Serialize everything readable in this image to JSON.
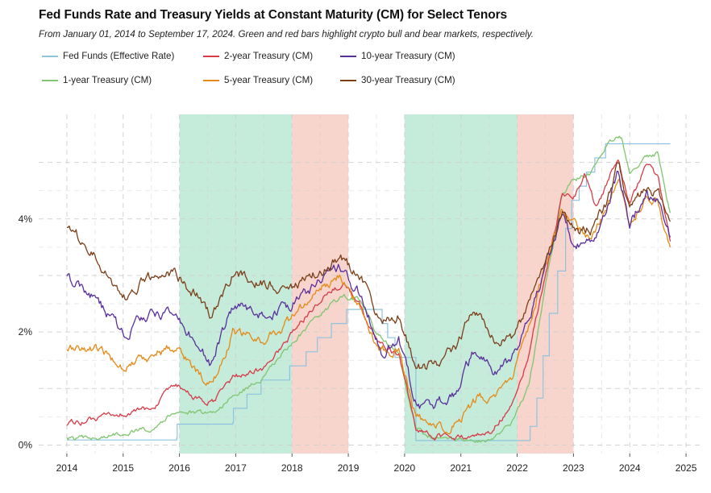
{
  "chart_data": {
    "type": "line",
    "title": "Fed Funds Rate and Treasury Yields at Constant Maturity (CM) for Select Tenors",
    "subtitle": "From January 01, 2014 to September 17, 2024. Green and red bars highlight crypto bull and bear markets, respectively.",
    "xlabel": "",
    "ylabel": "",
    "xlim": [
      2013.5,
      2025.3
    ],
    "ylim": [
      -0.15,
      5.85
    ],
    "x_ticks": [
      2014,
      2015,
      2016,
      2017,
      2018,
      2019,
      2020,
      2021,
      2022,
      2023,
      2024,
      2025
    ],
    "x_tick_labels": [
      "2014",
      "2015",
      "2016",
      "2017",
      "2018",
      "2019",
      "2020",
      "2021",
      "2022",
      "2023",
      "2024",
      "2025"
    ],
    "y_ticks": [
      0,
      2,
      4
    ],
    "y_tick_labels": [
      "0%",
      "2%",
      "4%"
    ],
    "grid": true,
    "legend_position": "top",
    "bands": [
      {
        "name": "bull",
        "start": 2016.0,
        "end": 2018.0,
        "color": "#bfe9d7"
      },
      {
        "name": "bear",
        "start": 2018.0,
        "end": 2019.0,
        "color": "#f6cfc6"
      },
      {
        "name": "bull",
        "start": 2020.0,
        "end": 2022.0,
        "color": "#bfe9d7"
      },
      {
        "name": "bear",
        "start": 2022.0,
        "end": 2023.0,
        "color": "#f6cfc6"
      }
    ],
    "series": [
      {
        "name": "Fed Funds (Effective Rate)",
        "color": "#8ec3df",
        "step": true,
        "noise": 0,
        "points": [
          [
            2014.0,
            0.09
          ],
          [
            2015.95,
            0.12
          ],
          [
            2015.96,
            0.37
          ],
          [
            2016.95,
            0.4
          ],
          [
            2016.96,
            0.65
          ],
          [
            2017.2,
            0.9
          ],
          [
            2017.45,
            1.15
          ],
          [
            2017.96,
            1.4
          ],
          [
            2018.25,
            1.65
          ],
          [
            2018.45,
            1.9
          ],
          [
            2018.7,
            2.15
          ],
          [
            2018.97,
            2.4
          ],
          [
            2019.55,
            2.4
          ],
          [
            2019.6,
            2.15
          ],
          [
            2019.7,
            1.9
          ],
          [
            2019.83,
            1.55
          ],
          [
            2020.17,
            1.55
          ],
          [
            2020.2,
            0.08
          ],
          [
            2022.2,
            0.08
          ],
          [
            2022.23,
            0.33
          ],
          [
            2022.35,
            0.83
          ],
          [
            2022.46,
            1.58
          ],
          [
            2022.57,
            2.33
          ],
          [
            2022.72,
            3.08
          ],
          [
            2022.86,
            3.83
          ],
          [
            2022.97,
            4.33
          ],
          [
            2023.1,
            4.58
          ],
          [
            2023.23,
            4.83
          ],
          [
            2023.38,
            5.08
          ],
          [
            2023.57,
            5.33
          ],
          [
            2024.72,
            5.33
          ]
        ]
      },
      {
        "name": "1-year Treasury (CM)",
        "color": "#7fc66f",
        "step": false,
        "noise": 0.04,
        "points": [
          [
            2014.0,
            0.12
          ],
          [
            2014.5,
            0.1
          ],
          [
            2015.0,
            0.22
          ],
          [
            2015.5,
            0.3
          ],
          [
            2015.95,
            0.62
          ],
          [
            2016.3,
            0.55
          ],
          [
            2016.6,
            0.58
          ],
          [
            2016.95,
            0.85
          ],
          [
            2017.5,
            1.2
          ],
          [
            2017.95,
            1.75
          ],
          [
            2018.5,
            2.3
          ],
          [
            2018.9,
            2.65
          ],
          [
            2019.2,
            2.55
          ],
          [
            2019.5,
            2.0
          ],
          [
            2019.9,
            1.58
          ],
          [
            2020.2,
            0.3
          ],
          [
            2020.4,
            0.15
          ],
          [
            2021.0,
            0.1
          ],
          [
            2021.5,
            0.07
          ],
          [
            2021.9,
            0.38
          ],
          [
            2022.2,
            1.0
          ],
          [
            2022.5,
            2.8
          ],
          [
            2022.8,
            4.4
          ],
          [
            2023.0,
            4.7
          ],
          [
            2023.3,
            4.8
          ],
          [
            2023.6,
            5.35
          ],
          [
            2023.85,
            5.45
          ],
          [
            2024.0,
            4.85
          ],
          [
            2024.3,
            5.1
          ],
          [
            2024.5,
            5.15
          ],
          [
            2024.72,
            4.1
          ]
        ]
      },
      {
        "name": "2-year Treasury (CM)",
        "color": "#d63b47",
        "step": false,
        "noise": 0.05,
        "points": [
          [
            2014.0,
            0.38
          ],
          [
            2014.5,
            0.45
          ],
          [
            2015.0,
            0.55
          ],
          [
            2015.5,
            0.65
          ],
          [
            2015.95,
            1.05
          ],
          [
            2016.3,
            0.8
          ],
          [
            2016.6,
            0.75
          ],
          [
            2016.95,
            1.2
          ],
          [
            2017.5,
            1.35
          ],
          [
            2017.95,
            1.9
          ],
          [
            2018.5,
            2.6
          ],
          [
            2018.9,
            2.85
          ],
          [
            2019.2,
            2.5
          ],
          [
            2019.5,
            1.85
          ],
          [
            2019.9,
            1.6
          ],
          [
            2020.2,
            0.25
          ],
          [
            2020.5,
            0.15
          ],
          [
            2021.0,
            0.13
          ],
          [
            2021.5,
            0.22
          ],
          [
            2021.9,
            0.7
          ],
          [
            2022.2,
            1.6
          ],
          [
            2022.5,
            3.0
          ],
          [
            2022.8,
            4.4
          ],
          [
            2023.0,
            4.4
          ],
          [
            2023.2,
            4.8
          ],
          [
            2023.4,
            4.2
          ],
          [
            2023.8,
            5.1
          ],
          [
            2024.0,
            4.25
          ],
          [
            2024.3,
            4.95
          ],
          [
            2024.5,
            4.75
          ],
          [
            2024.72,
            3.55
          ]
        ]
      },
      {
        "name": "5-year Treasury (CM)",
        "color": "#e58a16",
        "step": false,
        "noise": 0.08,
        "points": [
          [
            2014.0,
            1.7
          ],
          [
            2014.5,
            1.7
          ],
          [
            2015.0,
            1.4
          ],
          [
            2015.5,
            1.6
          ],
          [
            2015.95,
            1.75
          ],
          [
            2016.3,
            1.3
          ],
          [
            2016.6,
            1.05
          ],
          [
            2016.95,
            2.0
          ],
          [
            2017.5,
            1.85
          ],
          [
            2017.95,
            2.2
          ],
          [
            2018.5,
            2.75
          ],
          [
            2018.85,
            3.05
          ],
          [
            2019.2,
            2.45
          ],
          [
            2019.5,
            1.7
          ],
          [
            2019.9,
            1.65
          ],
          [
            2020.2,
            0.5
          ],
          [
            2020.5,
            0.28
          ],
          [
            2021.0,
            0.4
          ],
          [
            2021.3,
            0.85
          ],
          [
            2021.6,
            0.8
          ],
          [
            2021.95,
            1.3
          ],
          [
            2022.2,
            2.0
          ],
          [
            2022.5,
            3.2
          ],
          [
            2022.8,
            4.2
          ],
          [
            2023.0,
            3.9
          ],
          [
            2023.3,
            3.7
          ],
          [
            2023.6,
            4.2
          ],
          [
            2023.8,
            4.8
          ],
          [
            2024.0,
            3.9
          ],
          [
            2024.3,
            4.4
          ],
          [
            2024.5,
            4.3
          ],
          [
            2024.72,
            3.45
          ]
        ]
      },
      {
        "name": "10-year Treasury (CM)",
        "color": "#5a2f9c",
        "step": false,
        "noise": 0.09,
        "points": [
          [
            2014.0,
            2.95
          ],
          [
            2014.5,
            2.6
          ],
          [
            2015.0,
            1.95
          ],
          [
            2015.5,
            2.35
          ],
          [
            2015.95,
            2.25
          ],
          [
            2016.3,
            1.8
          ],
          [
            2016.55,
            1.45
          ],
          [
            2016.95,
            2.45
          ],
          [
            2017.5,
            2.3
          ],
          [
            2017.95,
            2.45
          ],
          [
            2018.5,
            2.9
          ],
          [
            2018.85,
            3.2
          ],
          [
            2019.2,
            2.65
          ],
          [
            2019.6,
            1.7
          ],
          [
            2019.9,
            1.85
          ],
          [
            2020.2,
            0.75
          ],
          [
            2020.5,
            0.65
          ],
          [
            2020.9,
            0.9
          ],
          [
            2021.2,
            1.6
          ],
          [
            2021.6,
            1.3
          ],
          [
            2021.95,
            1.6
          ],
          [
            2022.2,
            2.2
          ],
          [
            2022.5,
            3.1
          ],
          [
            2022.8,
            4.05
          ],
          [
            2023.0,
            3.55
          ],
          [
            2023.3,
            3.6
          ],
          [
            2023.6,
            4.2
          ],
          [
            2023.8,
            4.85
          ],
          [
            2024.0,
            3.95
          ],
          [
            2024.3,
            4.4
          ],
          [
            2024.5,
            4.25
          ],
          [
            2024.72,
            3.65
          ]
        ]
      },
      {
        "name": "30-year Treasury (CM)",
        "color": "#7b3f18",
        "step": false,
        "noise": 0.09,
        "points": [
          [
            2014.0,
            3.9
          ],
          [
            2014.5,
            3.4
          ],
          [
            2015.0,
            2.55
          ],
          [
            2015.5,
            3.0
          ],
          [
            2015.95,
            3.0
          ],
          [
            2016.3,
            2.65
          ],
          [
            2016.55,
            2.25
          ],
          [
            2016.95,
            3.05
          ],
          [
            2017.5,
            2.85
          ],
          [
            2017.95,
            2.8
          ],
          [
            2018.5,
            3.05
          ],
          [
            2018.85,
            3.35
          ],
          [
            2019.2,
            3.0
          ],
          [
            2019.6,
            2.1
          ],
          [
            2019.9,
            2.3
          ],
          [
            2020.2,
            1.4
          ],
          [
            2020.5,
            1.4
          ],
          [
            2020.9,
            1.7
          ],
          [
            2021.2,
            2.4
          ],
          [
            2021.6,
            1.9
          ],
          [
            2021.95,
            1.9
          ],
          [
            2022.2,
            2.5
          ],
          [
            2022.5,
            3.2
          ],
          [
            2022.8,
            4.05
          ],
          [
            2023.0,
            3.8
          ],
          [
            2023.3,
            3.8
          ],
          [
            2023.6,
            4.3
          ],
          [
            2023.8,
            5.0
          ],
          [
            2024.0,
            4.1
          ],
          [
            2024.3,
            4.55
          ],
          [
            2024.5,
            4.45
          ],
          [
            2024.72,
            3.95
          ]
        ]
      }
    ]
  }
}
